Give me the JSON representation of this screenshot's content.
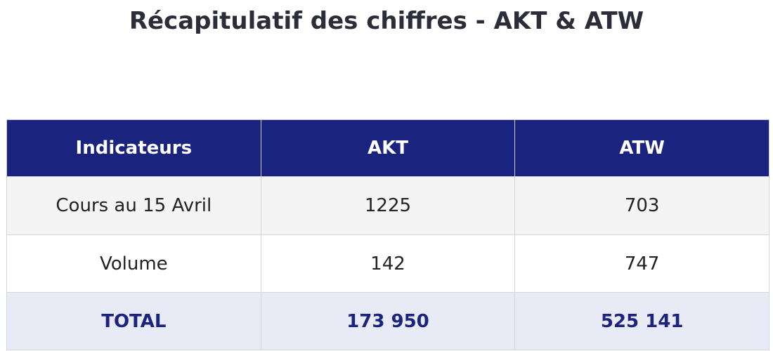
{
  "header": {
    "title": "Récapitulatif des chiffres - AKT & ATW"
  },
  "table": {
    "columns": [
      "Indicateurs",
      "AKT",
      "ATW"
    ],
    "rows": [
      [
        "Cours au 15 Avril",
        "1225",
        "703"
      ],
      [
        "Volume",
        "142",
        "747"
      ]
    ],
    "total": [
      "TOTAL",
      "173 950",
      "525 141"
    ]
  }
}
